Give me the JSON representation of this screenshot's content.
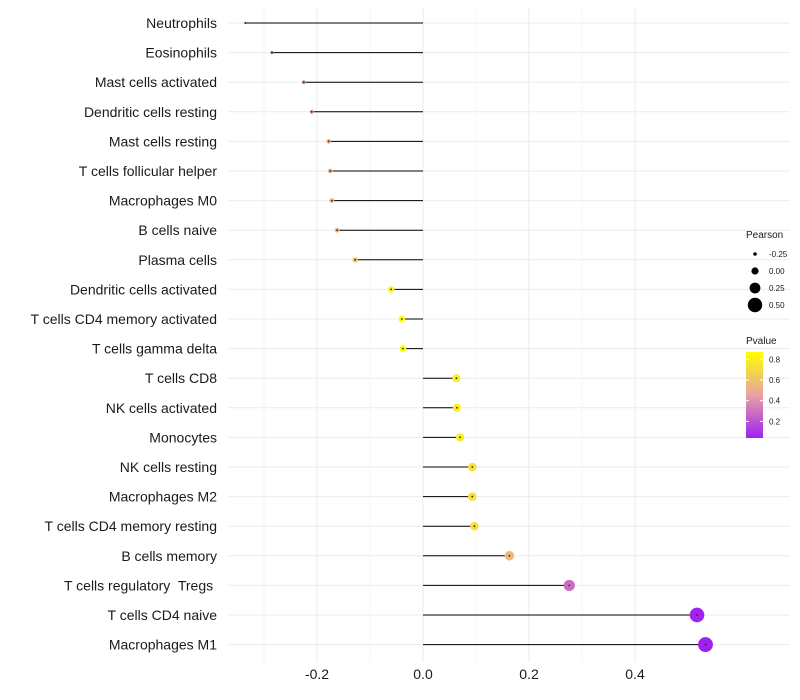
{
  "chart_data": {
    "type": "lollipop",
    "title": "",
    "xlabel": "",
    "ylabel": "",
    "xlim": [
      -0.37,
      0.55
    ],
    "x_ticks": [
      -0.2,
      0.0,
      0.2,
      0.4
    ],
    "x_tick_labels": [
      "-0.2",
      "0.0",
      "0.2",
      "0.4"
    ],
    "grid": true,
    "points": [
      {
        "category": "Neutrophils",
        "pearson": -0.335,
        "pvalue": 0.1
      },
      {
        "category": "Eosinophils",
        "pearson": -0.285,
        "pvalue": 0.25
      },
      {
        "category": "Mast cells activated",
        "pearson": -0.225,
        "pvalue": 0.4
      },
      {
        "category": "Dendritic cells resting",
        "pearson": -0.21,
        "pvalue": 0.44
      },
      {
        "category": "Mast cells resting",
        "pearson": -0.178,
        "pvalue": 0.5
      },
      {
        "category": "T cells follicular helper",
        "pearson": -0.175,
        "pvalue": 0.52
      },
      {
        "category": "Macrophages M0",
        "pearson": -0.172,
        "pvalue": 0.52
      },
      {
        "category": "B cells naive",
        "pearson": -0.162,
        "pvalue": 0.55
      },
      {
        "category": "Plasma cells",
        "pearson": -0.128,
        "pvalue": 0.62
      },
      {
        "category": "Dendritic cells activated",
        "pearson": -0.06,
        "pvalue": 0.82
      },
      {
        "category": "T cells CD4 memory activated",
        "pearson": -0.04,
        "pvalue": 0.87
      },
      {
        "category": "T cells gamma delta",
        "pearson": -0.038,
        "pvalue": 0.87
      },
      {
        "category": "T cells CD8",
        "pearson": 0.063,
        "pvalue": 0.8
      },
      {
        "category": "NK cells activated",
        "pearson": 0.064,
        "pvalue": 0.79
      },
      {
        "category": "Monocytes",
        "pearson": 0.07,
        "pvalue": 0.78
      },
      {
        "category": "NK cells resting",
        "pearson": 0.093,
        "pvalue": 0.73
      },
      {
        "category": "Macrophages M2",
        "pearson": 0.093,
        "pvalue": 0.73
      },
      {
        "category": "T cells CD4 memory resting",
        "pearson": 0.097,
        "pvalue": 0.72
      },
      {
        "category": "B cells memory",
        "pearson": 0.163,
        "pvalue": 0.55
      },
      {
        "category": "T cells regulatory  Tregs ",
        "pearson": 0.276,
        "pvalue": 0.28
      },
      {
        "category": "T cells CD4 naive",
        "pearson": 0.517,
        "pvalue": 0.05
      },
      {
        "category": "Macrophages M1",
        "pearson": 0.533,
        "pvalue": 0.04
      }
    ],
    "legend": {
      "placement": "right",
      "size": {
        "title": "Pearson",
        "breaks": [
          -0.25,
          0.0,
          0.25,
          0.5
        ],
        "labels": [
          "-0.25",
          "0.00",
          "0.25",
          "0.50"
        ],
        "color": "#000000"
      },
      "color": {
        "title": "Pvalue",
        "range": [
          0.04,
          0.87
        ],
        "breaks": [
          0.2,
          0.4,
          0.6,
          0.8
        ],
        "labels": [
          "0.2",
          "0.4",
          "0.6",
          "0.8"
        ],
        "gradient": [
          "#a020f0",
          "#e8a3a0",
          "#ffff00"
        ]
      }
    }
  }
}
